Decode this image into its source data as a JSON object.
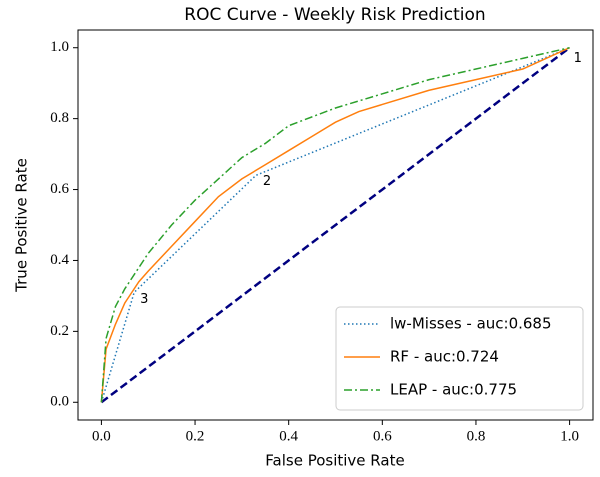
{
  "chart_data": {
    "type": "line",
    "title": "ROC Curve - Weekly Risk Prediction",
    "x_label": "False Positive Rate",
    "y_label": "True Positive Rate",
    "xlim": [
      -0.05,
      1.05
    ],
    "ylim": [
      -0.05,
      1.05
    ],
    "xticks": [
      {
        "value": 0,
        "label": "0.0"
      },
      0.2,
      0.4,
      0.6,
      0.8,
      {
        "value": 1,
        "label": "1.0"
      }
    ],
    "yticks": [
      {
        "value": 0,
        "label": "0.0"
      },
      0.2,
      0.4,
      0.6,
      0.8,
      {
        "value": 1,
        "label": "1.0"
      }
    ],
    "legend": "lower right",
    "series": [
      {
        "name": "lw-Misses - auc:0.685",
        "color": "#1f77b4",
        "style": "dotted",
        "x": [
          0,
          0.07,
          0.33,
          1
        ],
        "values": [
          0,
          0.31,
          0.64,
          1
        ]
      },
      {
        "name": "RF - auc:0.724",
        "color": "#ff7f0e",
        "style": "solid",
        "x": [
          0,
          0.01,
          0.03,
          0.05,
          0.08,
          0.1,
          0.15,
          0.2,
          0.25,
          0.3,
          0.35,
          0.4,
          0.45,
          0.5,
          0.55,
          0.6,
          0.7,
          0.8,
          0.9,
          1
        ],
        "values": [
          0,
          0.15,
          0.22,
          0.28,
          0.34,
          0.37,
          0.44,
          0.51,
          0.58,
          0.63,
          0.67,
          0.71,
          0.75,
          0.79,
          0.82,
          0.84,
          0.88,
          0.91,
          0.94,
          1
        ]
      },
      {
        "name": "LEAP - auc:0.775",
        "color": "#2ca02c",
        "style": "dashdot",
        "x": [
          0,
          0.01,
          0.03,
          0.05,
          0.1,
          0.15,
          0.2,
          0.25,
          0.3,
          0.35,
          0.4,
          0.5,
          0.6,
          0.7,
          0.8,
          0.9,
          1
        ],
        "values": [
          0,
          0.18,
          0.27,
          0.32,
          0.42,
          0.5,
          0.57,
          0.63,
          0.69,
          0.73,
          0.78,
          0.83,
          0.87,
          0.91,
          0.94,
          0.97,
          1
        ]
      }
    ],
    "diagonal": {
      "color": "#000080",
      "x": [
        0,
        1
      ],
      "values": [
        0,
        1
      ]
    },
    "annotations": [
      {
        "text": "1",
        "x": 1,
        "y": 1
      },
      {
        "text": "2",
        "x": 0.33,
        "y": 0.64
      },
      {
        "text": "3",
        "x": 0.07,
        "y": 0.31
      }
    ]
  }
}
